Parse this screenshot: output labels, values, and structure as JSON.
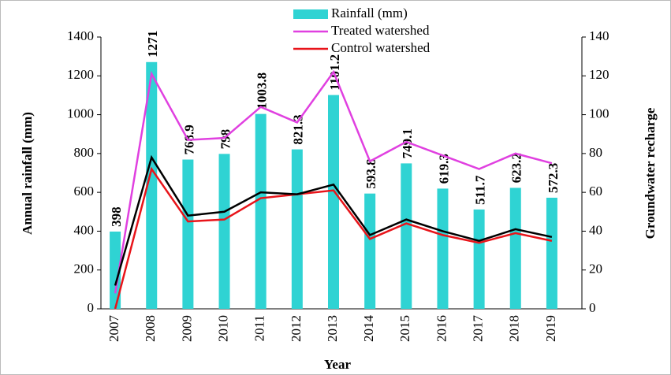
{
  "chart_data": {
    "type": "bar_line",
    "categories": [
      "2007",
      "2008",
      "2009",
      "2010",
      "2011",
      "2012",
      "2013",
      "2014",
      "2015",
      "2016",
      "2017",
      "2018",
      "2019"
    ],
    "x_label": "Year",
    "y_label": "Annual rainfall (mm)",
    "y2_label": "Groundwater recharge",
    "ylim": [
      0,
      1400
    ],
    "yticks": [
      0,
      200,
      400,
      600,
      800,
      1000,
      1200,
      1400
    ],
    "y2lim": [
      0,
      140
    ],
    "y2ticks": [
      0,
      20,
      40,
      60,
      80,
      100,
      120,
      140
    ],
    "legend": "top",
    "series": [
      {
        "name": "Rainfall (mm)",
        "kind": "bar",
        "color": "#2fd3d3",
        "values": [
          398,
          1271,
          768.9,
          798,
          1003.8,
          821.3,
          1101.2,
          593.8,
          749.1,
          619.3,
          511.7,
          623.2,
          572.3
        ]
      },
      {
        "name": "Treated watershed",
        "kind": "line",
        "axis": "y2",
        "color": "#e040e0",
        "values": [
          8,
          121,
          87,
          88,
          104,
          96,
          122,
          76,
          86,
          79,
          72,
          80,
          75
        ]
      },
      {
        "name": "Control watershed",
        "kind": "line",
        "axis": "y2",
        "color": "#e8141a",
        "values": [
          0,
          72,
          45,
          46,
          57,
          59,
          61,
          36,
          44,
          38,
          34,
          39,
          35
        ]
      },
      {
        "kind": "line",
        "axis": "y2",
        "color": "#000000",
        "values": [
          12,
          78,
          48,
          50,
          60,
          59,
          64,
          38,
          46,
          40,
          35,
          41,
          37
        ]
      }
    ]
  }
}
